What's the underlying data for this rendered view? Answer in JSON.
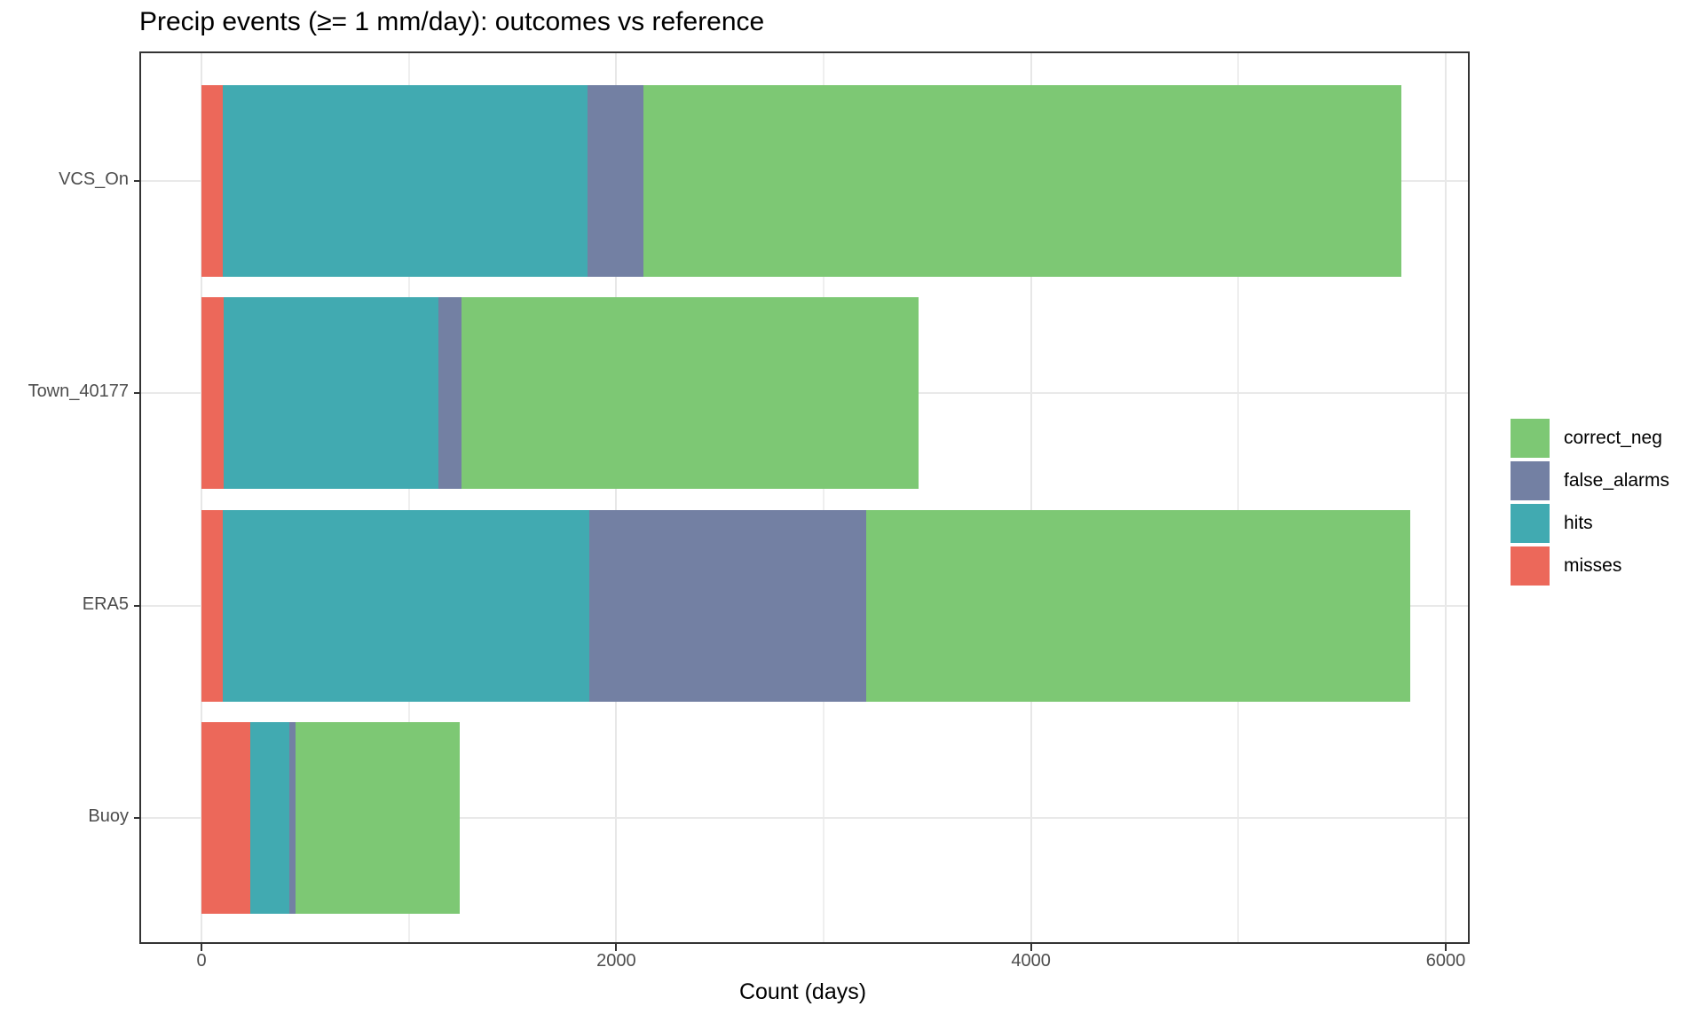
{
  "title": "Precip events (≥= 1 mm/day): outcomes vs reference",
  "chart_data": {
    "type": "bar",
    "orientation": "horizontal",
    "stacked": true,
    "title": "Precip events (≥= 1 mm/day): outcomes vs reference",
    "xlabel": "Count (days)",
    "ylabel": "",
    "categories_top_to_bottom": [
      "VCS_On",
      "Town_40177",
      "ERA5",
      "Buoy"
    ],
    "stack_order_left_to_right": [
      "misses",
      "hits",
      "false_alarms",
      "correct_neg"
    ],
    "series": [
      {
        "name": "misses",
        "color": "#EC685A",
        "values": [
          104,
          106,
          103,
          234
        ]
      },
      {
        "name": "hits",
        "color": "#41AAB1",
        "values": [
          1758,
          1037,
          1769,
          188
        ]
      },
      {
        "name": "false_alarms",
        "color": "#7380A3",
        "values": [
          268,
          109,
          1332,
          30
        ]
      },
      {
        "name": "correct_neg",
        "color": "#7DC874",
        "values": [
          3655,
          2208,
          2625,
          792
        ]
      }
    ],
    "bar_totals": [
      5785,
      3460,
      5829,
      1244
    ],
    "x_axis": {
      "tick_values": [
        0,
        2000,
        4000,
        6000
      ],
      "tick_labels": [
        "0",
        "2000",
        "4000",
        "6000"
      ],
      "minor_gridline_values": [
        1000,
        3000,
        5000
      ],
      "range_shown": [
        -300,
        6120
      ]
    },
    "legend": {
      "position": "right",
      "entries_top_to_bottom": [
        "correct_neg",
        "false_alarms",
        "hits",
        "misses"
      ]
    },
    "grid": "on",
    "styling": {
      "panel_border_color": "#333333",
      "axis_text_color": "#4d4d4d",
      "major_gridline_color": "#e7e7e7",
      "minor_gridline_color": "#efefef",
      "horizontal_gridline_color": "#e9e9e9",
      "background_color": "#ffffff"
    }
  }
}
